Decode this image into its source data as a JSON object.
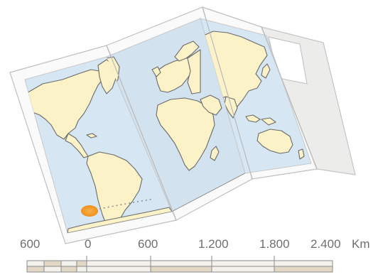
{
  "map": {
    "scale_bar": {
      "unit": "Km",
      "labels": [
        "600",
        "0",
        "600",
        "1.200",
        "1.800",
        "2.400"
      ],
      "colors": {
        "light_segment": "#f3f1ec",
        "dark_segment": "#e1d7c4",
        "outline": "#8a8a8a"
      }
    },
    "colors": {
      "ocean": "#d6e6f2",
      "land": "#fbf2c8",
      "coast": "#6a6a6a",
      "paper": "#fafafa",
      "cover_panel": "#ececea",
      "marker": "#f2a33a"
    },
    "marker": {
      "icon": "location-dot-icon"
    }
  }
}
